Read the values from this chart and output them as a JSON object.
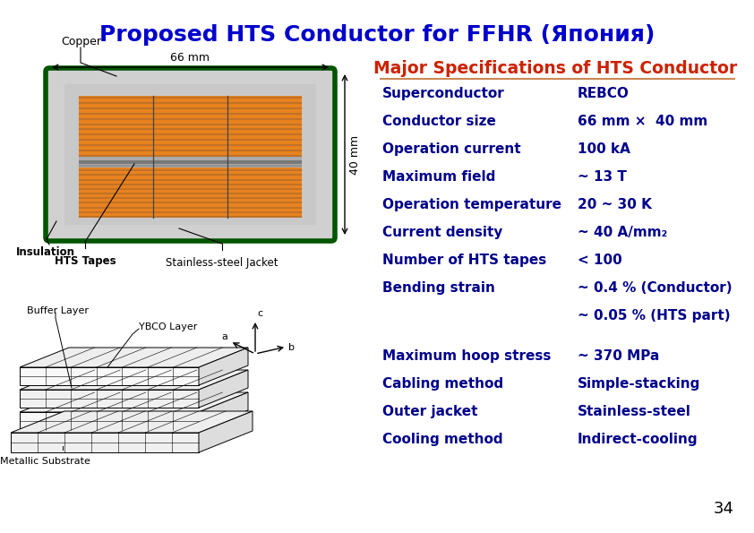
{
  "title": "Proposed HTS Conductor for FFHR (Япония)",
  "title_color": "#0000CC",
  "title_fontsize": 18,
  "table_title": "Major Specifications of HTS Conductor",
  "table_title_color": "#CC2200",
  "table_title_fontsize": 13.5,
  "background_color": "#FFFFFF",
  "label_color": "#00008B",
  "value_color": "#00008B",
  "rows": [
    [
      "Superconductor",
      "REBCO"
    ],
    [
      "Conductor size",
      "66 mm ×  40 mm"
    ],
    [
      "Operation current",
      "100 kA"
    ],
    [
      "Maximum field",
      "~ 13 T"
    ],
    [
      "Operation temperature",
      "20 ~ 30 K"
    ],
    [
      "Current density",
      "~ 40 A/mm₂"
    ],
    [
      "Number of HTS tapes",
      "< 100"
    ],
    [
      "Bending strain",
      "~ 0.4 % (Conductor)"
    ],
    [
      "",
      "~ 0.05 % (HTS part)"
    ],
    [
      "Maximum hoop stress",
      "~ 370 MPa"
    ],
    [
      "Cabling method",
      "Simple-stacking"
    ],
    [
      "Outer jacket",
      "Stainless-steel"
    ],
    [
      "Cooling method",
      "Indirect-cooling"
    ]
  ],
  "row_fontsize": 11,
  "page_number": "34"
}
